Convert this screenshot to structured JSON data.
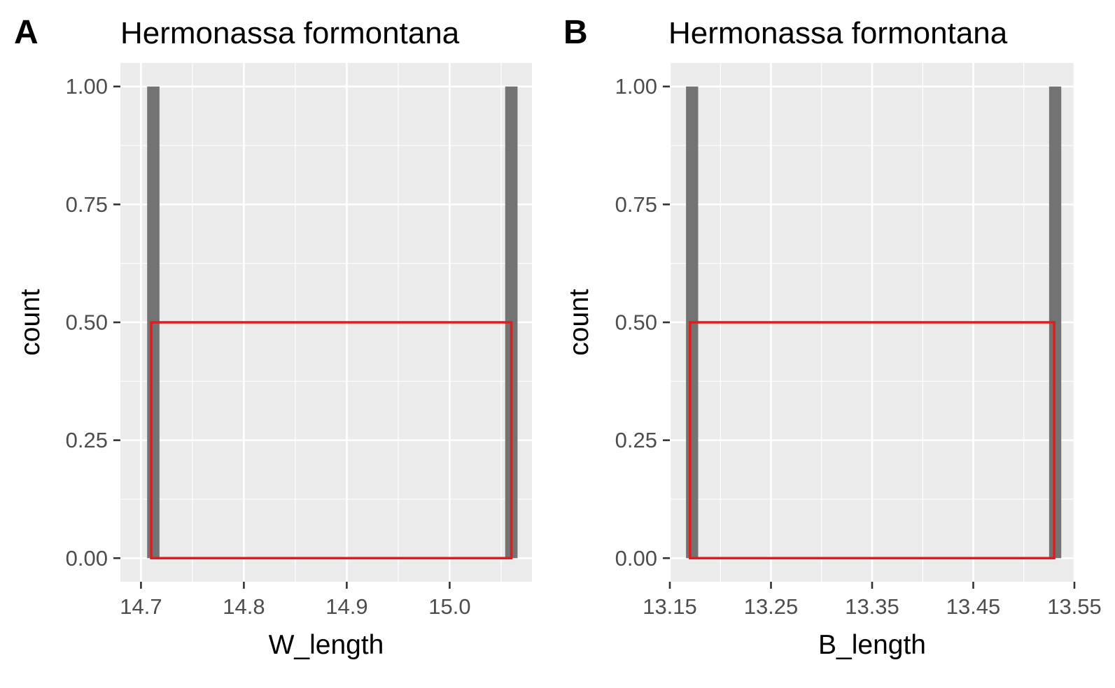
{
  "chart_data": [
    {
      "panel_tag": "A",
      "type": "bar",
      "title": "Hermonassa formontana",
      "xlabel": "W_length",
      "ylabel": "count",
      "xlim": [
        14.68,
        15.08
      ],
      "ylim": [
        -0.05,
        1.05
      ],
      "x_ticks": [
        14.7,
        14.8,
        14.9,
        15.0
      ],
      "x_tick_labels": [
        "14.7",
        "14.8",
        "14.9",
        "15.0"
      ],
      "y_ticks": [
        0,
        0.25,
        0.5,
        0.75,
        1
      ],
      "y_tick_labels": [
        "0.00",
        "0.25",
        "0.50",
        "0.75",
        "1.00"
      ],
      "grid": true,
      "bars": [
        {
          "x": 14.712,
          "width": 0.012,
          "count": 1
        },
        {
          "x": 15.06,
          "width": 0.012,
          "count": 1
        }
      ],
      "highlight_box": {
        "x0": 14.71,
        "x1": 15.06,
        "y0": 0,
        "y1": 0.5
      }
    },
    {
      "panel_tag": "B",
      "type": "bar",
      "title": "Hermonassa formontana",
      "xlabel": "B_length",
      "ylabel": "count",
      "xlim": [
        13.15,
        13.55
      ],
      "ylim": [
        -0.05,
        1.05
      ],
      "x_ticks": [
        13.15,
        13.25,
        13.35,
        13.45,
        13.55
      ],
      "x_tick_labels": [
        "13.15",
        "13.25",
        "13.35",
        "13.45",
        "13.55"
      ],
      "y_ticks": [
        0,
        0.25,
        0.5,
        0.75,
        1
      ],
      "y_tick_labels": [
        "0.00",
        "0.25",
        "0.50",
        "0.75",
        "1.00"
      ],
      "grid": true,
      "bars": [
        {
          "x": 13.172,
          "width": 0.012,
          "count": 1
        },
        {
          "x": 13.531,
          "width": 0.012,
          "count": 1
        }
      ],
      "highlight_box": {
        "x0": 13.17,
        "x1": 13.53,
        "y0": 0,
        "y1": 0.5
      }
    }
  ],
  "colors": {
    "panel_bg": "#EBEBEB",
    "grid_major": "#FFFFFF",
    "bar_fill": "#737373",
    "highlight": "#E41A1C",
    "text": "#000000",
    "tick_text": "#4D4D4D",
    "tick_mark": "#333333"
  }
}
